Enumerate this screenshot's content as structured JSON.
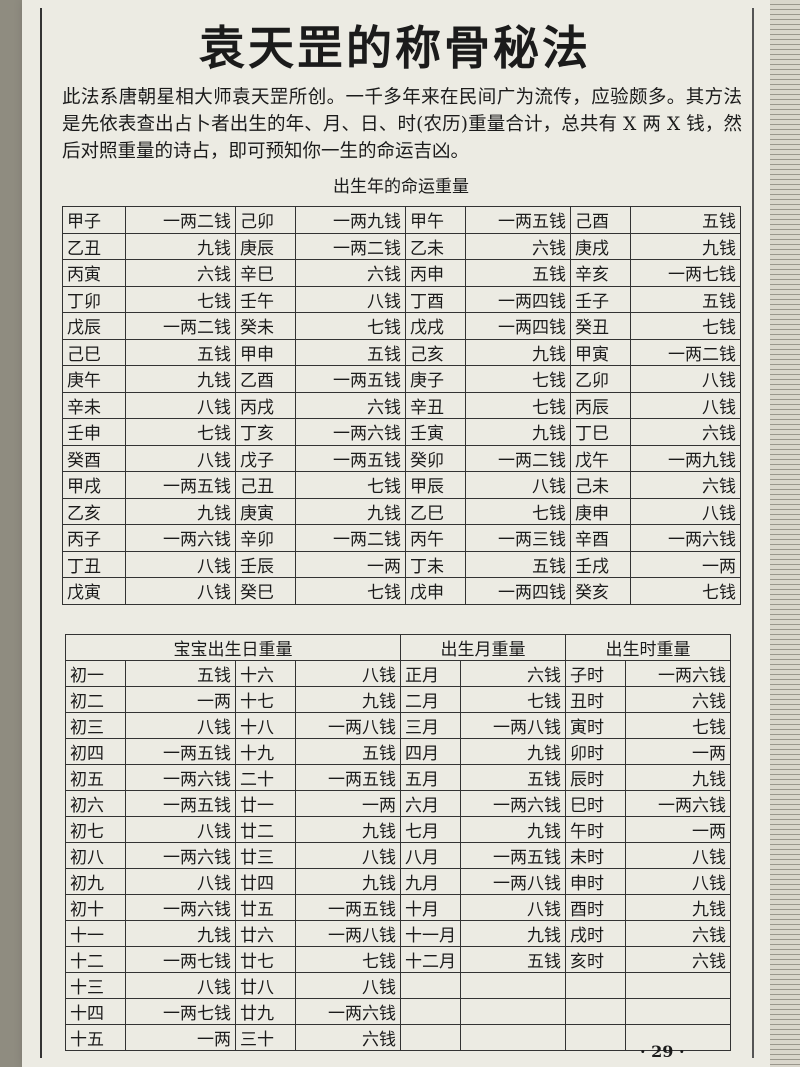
{
  "header": {
    "title": "袁天罡的称骨秘法",
    "intro": "此法系唐朝星相大师袁天罡所创。一千多年来在民间广为流传，应验颇多。其方法是先依表查出占卜者出生的年、月、日、时(农历)重量合计，总共有 X 两 X 钱，然后对照重量的诗占，即可预知你一生的命运吉凶。"
  },
  "year_table": {
    "title": "出生年的命运重量",
    "rows": [
      [
        "甲子",
        "一两二钱",
        "己卯",
        "一两九钱",
        "甲午",
        "一两五钱",
        "己酉",
        "五钱"
      ],
      [
        "乙丑",
        "九钱",
        "庚辰",
        "一两二钱",
        "乙未",
        "六钱",
        "庚戌",
        "九钱"
      ],
      [
        "丙寅",
        "六钱",
        "辛巳",
        "六钱",
        "丙申",
        "五钱",
        "辛亥",
        "一两七钱"
      ],
      [
        "丁卯",
        "七钱",
        "壬午",
        "八钱",
        "丁酉",
        "一两四钱",
        "壬子",
        "五钱"
      ],
      [
        "戊辰",
        "一两二钱",
        "癸未",
        "七钱",
        "戊戌",
        "一两四钱",
        "癸丑",
        "七钱"
      ],
      [
        "己巳",
        "五钱",
        "甲申",
        "五钱",
        "己亥",
        "九钱",
        "甲寅",
        "一两二钱"
      ],
      [
        "庚午",
        "九钱",
        "乙酉",
        "一两五钱",
        "庚子",
        "七钱",
        "乙卯",
        "八钱"
      ],
      [
        "辛未",
        "八钱",
        "丙戌",
        "六钱",
        "辛丑",
        "七钱",
        "丙辰",
        "八钱"
      ],
      [
        "壬申",
        "七钱",
        "丁亥",
        "一两六钱",
        "壬寅",
        "九钱",
        "丁巳",
        "六钱"
      ],
      [
        "癸酉",
        "八钱",
        "戊子",
        "一两五钱",
        "癸卯",
        "一两二钱",
        "戊午",
        "一两九钱"
      ],
      [
        "甲戌",
        "一两五钱",
        "己丑",
        "七钱",
        "甲辰",
        "八钱",
        "己未",
        "六钱"
      ],
      [
        "乙亥",
        "九钱",
        "庚寅",
        "九钱",
        "乙巳",
        "七钱",
        "庚申",
        "八钱"
      ],
      [
        "丙子",
        "一两六钱",
        "辛卯",
        "一两二钱",
        "丙午",
        "一两三钱",
        "辛酉",
        "一两六钱"
      ],
      [
        "丁丑",
        "八钱",
        "壬辰",
        "一两",
        "丁未",
        "五钱",
        "壬戌",
        "一两"
      ],
      [
        "戊寅",
        "八钱",
        "癸巳",
        "七钱",
        "戊申",
        "一两四钱",
        "癸亥",
        "七钱"
      ]
    ]
  },
  "day_table": {
    "title": "宝宝出生日重量",
    "rows": [
      [
        "初一",
        "五钱",
        "十六",
        "八钱"
      ],
      [
        "初二",
        "一两",
        "十七",
        "九钱"
      ],
      [
        "初三",
        "八钱",
        "十八",
        "一两八钱"
      ],
      [
        "初四",
        "一两五钱",
        "十九",
        "五钱"
      ],
      [
        "初五",
        "一两六钱",
        "二十",
        "一两五钱"
      ],
      [
        "初六",
        "一两五钱",
        "廿一",
        "一两"
      ],
      [
        "初七",
        "八钱",
        "廿二",
        "九钱"
      ],
      [
        "初八",
        "一两六钱",
        "廿三",
        "八钱"
      ],
      [
        "初九",
        "八钱",
        "廿四",
        "九钱"
      ],
      [
        "初十",
        "一两六钱",
        "廿五",
        "一两五钱"
      ],
      [
        "十一",
        "九钱",
        "廿六",
        "一两八钱"
      ],
      [
        "十二",
        "一两七钱",
        "廿七",
        "七钱"
      ],
      [
        "十三",
        "八钱",
        "廿八",
        "八钱"
      ],
      [
        "十四",
        "一两七钱",
        "廿九",
        "一两六钱"
      ],
      [
        "十五",
        "一两",
        "三十",
        "六钱"
      ]
    ]
  },
  "month_table": {
    "title": "出生月重量",
    "rows": [
      [
        "正月",
        "六钱"
      ],
      [
        "二月",
        "七钱"
      ],
      [
        "三月",
        "一两八钱"
      ],
      [
        "四月",
        "九钱"
      ],
      [
        "五月",
        "五钱"
      ],
      [
        "六月",
        "一两六钱"
      ],
      [
        "七月",
        "九钱"
      ],
      [
        "八月",
        "一两五钱"
      ],
      [
        "九月",
        "一两八钱"
      ],
      [
        "十月",
        "八钱"
      ],
      [
        "十一月",
        "九钱"
      ],
      [
        "十二月",
        "五钱"
      ]
    ]
  },
  "hour_table": {
    "title": "出生时重量",
    "rows": [
      [
        "子时",
        "一两六钱"
      ],
      [
        "丑时",
        "六钱"
      ],
      [
        "寅时",
        "七钱"
      ],
      [
        "卯时",
        "一两"
      ],
      [
        "辰时",
        "九钱"
      ],
      [
        "巳时",
        "一两六钱"
      ],
      [
        "午时",
        "一两"
      ],
      [
        "未时",
        "八钱"
      ],
      [
        "申时",
        "八钱"
      ],
      [
        "酉时",
        "九钱"
      ],
      [
        "戌时",
        "六钱"
      ],
      [
        "亥时",
        "六钱"
      ]
    ]
  },
  "page_number": "· 29 ·"
}
